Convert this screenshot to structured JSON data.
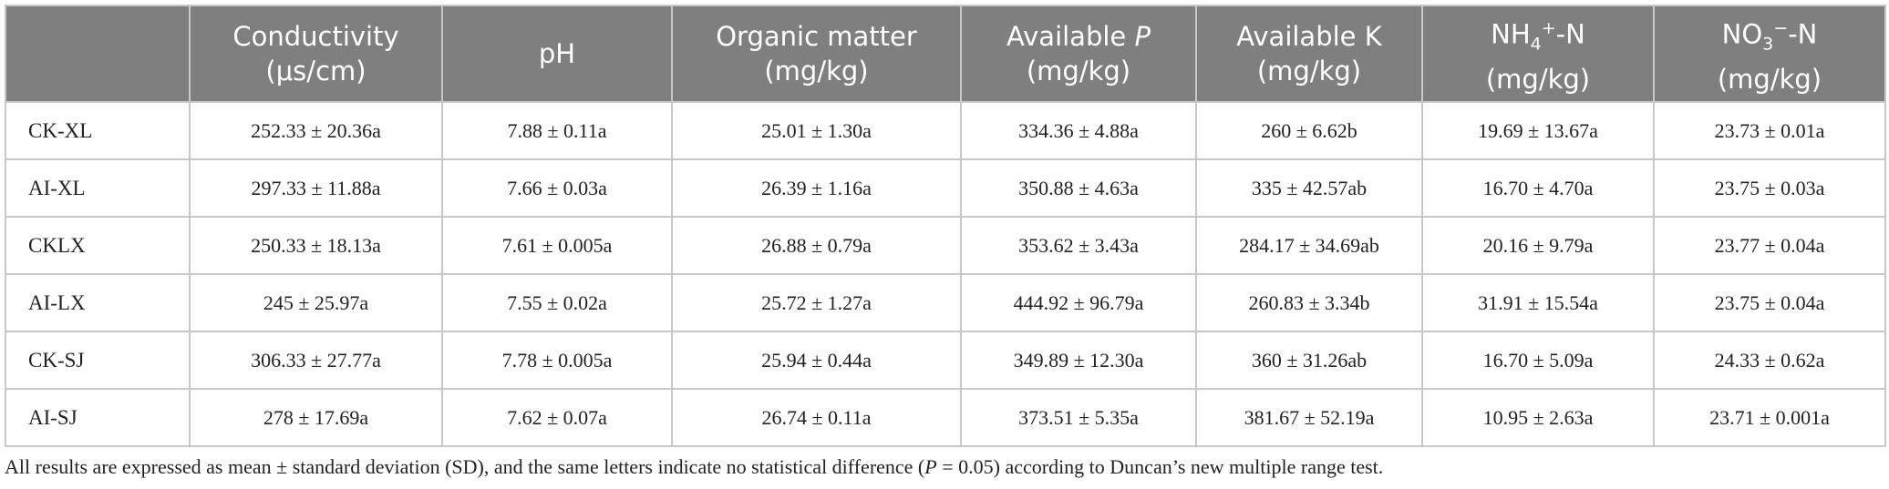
{
  "header": {
    "columns": [
      {
        "name": [
          {
            "text": "Conductivity"
          }
        ],
        "unit": "(μs/cm)"
      },
      {
        "name": [
          {
            "text": "pH"
          }
        ]
      },
      {
        "name": [
          {
            "text": "Organic matter"
          }
        ],
        "unit": "(mg/kg)"
      },
      {
        "name": [
          {
            "text": "Available "
          },
          {
            "text": "P",
            "style": "italic"
          }
        ],
        "unit": "(mg/kg)"
      },
      {
        "name": [
          {
            "text": "Available K"
          }
        ],
        "unit": "(mg/kg)"
      },
      {
        "name": [
          {
            "text": "NH"
          },
          {
            "text": "4",
            "style": "sub"
          },
          {
            "text": "+",
            "style": "sup"
          },
          {
            "text": "-N"
          }
        ],
        "unit": "(mg/kg)"
      },
      {
        "name": [
          {
            "text": "NO"
          },
          {
            "text": "3",
            "style": "sub"
          },
          {
            "text": "−",
            "style": "sup"
          },
          {
            "text": "-N"
          }
        ],
        "unit": "(mg/kg)"
      }
    ]
  },
  "table": {
    "rows": [
      [
        "CK-XL",
        "252.33 ± 20.36a",
        "7.88 ± 0.11a",
        "25.01 ± 1.30a",
        "334.36 ± 4.88a",
        "260 ± 6.62b",
        "19.69 ± 13.67a",
        "23.73 ± 0.01a"
      ],
      [
        "AI-XL",
        "297.33 ± 11.88a",
        "7.66 ± 0.03a",
        "26.39 ± 1.16a",
        "350.88 ± 4.63a",
        "335 ± 42.57ab",
        "16.70 ± 4.70a",
        "23.75 ± 0.03a"
      ],
      [
        "CKLX",
        "250.33 ± 18.13a",
        "7.61 ± 0.005a",
        "26.88 ± 0.79a",
        "353.62 ± 3.43a",
        "284.17 ± 34.69ab",
        "20.16 ± 9.79a",
        "23.77 ± 0.04a"
      ],
      [
        "AI-LX",
        "245 ± 25.97a",
        "7.55 ± 0.02a",
        "25.72 ± 1.27a",
        "444.92 ± 96.79a",
        "260.83 ± 3.34b",
        "31.91 ± 15.54a",
        "23.75 ± 0.04a"
      ],
      [
        "CK-SJ",
        "306.33 ± 27.77a",
        "7.78 ± 0.005a",
        "25.94 ± 0.44a",
        "349.89 ± 12.30a",
        "360 ± 31.26ab",
        "16.70 ± 5.09a",
        "24.33 ± 0.62a"
      ],
      [
        "AI-SJ",
        "278 ± 17.69a",
        "7.62 ± 0.07a",
        "26.74 ± 0.11a",
        "373.51 ± 5.35a",
        "381.67 ± 52.19a",
        "10.95 ± 2.63a",
        "23.71 ± 0.001a"
      ]
    ]
  },
  "footnote": [
    {
      "text": "All results are expressed as mean ± standard deviation (SD), and the same letters indicate no statistical difference ("
    },
    {
      "text": "P",
      "style": "italic"
    },
    {
      "text": " = 0.05) according to Duncan’s new multiple range test."
    }
  ]
}
